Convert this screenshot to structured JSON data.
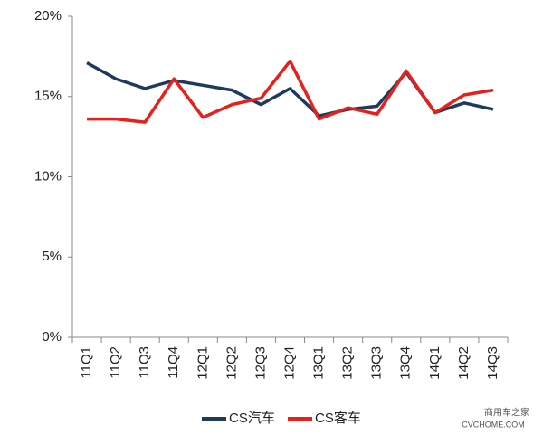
{
  "chart_data": {
    "type": "line",
    "categories": [
      "11Q1",
      "11Q2",
      "11Q3",
      "11Q4",
      "12Q1",
      "12Q2",
      "12Q3",
      "12Q4",
      "13Q1",
      "13Q2",
      "13Q3",
      "13Q4",
      "14Q1",
      "14Q2",
      "14Q3"
    ],
    "series": [
      {
        "name": "CS汽车",
        "color": "#1f3a5f",
        "values": [
          17.1,
          16.1,
          15.5,
          16.0,
          15.7,
          15.4,
          14.5,
          15.5,
          13.8,
          14.2,
          14.4,
          16.5,
          14.0,
          14.6,
          14.2
        ]
      },
      {
        "name": "CS客车",
        "color": "#e8201c",
        "values": [
          13.6,
          13.6,
          13.4,
          16.1,
          13.7,
          14.5,
          14.9,
          17.2,
          13.6,
          14.3,
          13.9,
          16.6,
          14.0,
          15.1,
          15.4
        ]
      }
    ],
    "ylim": [
      0,
      20
    ],
    "yticks": [
      {
        "value": 0,
        "label": "0%"
      },
      {
        "value": 5,
        "label": "5%"
      },
      {
        "value": 10,
        "label": "10%"
      },
      {
        "value": 15,
        "label": "15%"
      },
      {
        "value": 20,
        "label": "20%"
      }
    ],
    "grid": false,
    "legend": "bottom"
  },
  "watermark": {
    "brand": "商用车之家",
    "site": "CVCHOME.COM"
  }
}
